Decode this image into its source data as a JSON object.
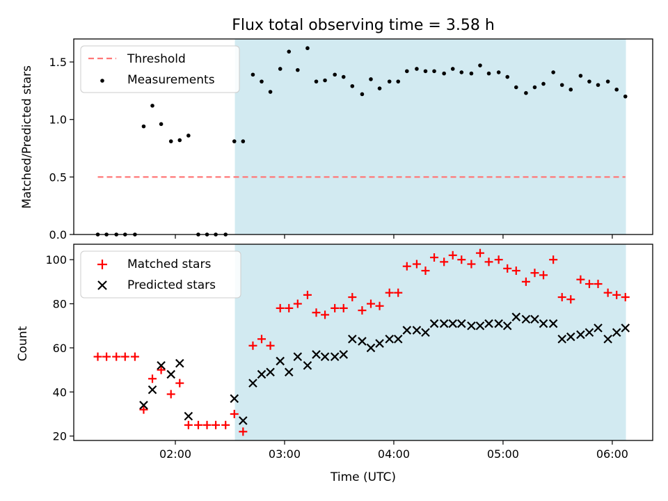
{
  "title": "Flux total observing time = 3.58 h",
  "xlabel": "Time (UTC)",
  "x_ticks": [
    {
      "v": 2.0,
      "label": "02:00"
    },
    {
      "v": 3.0,
      "label": "03:00"
    },
    {
      "v": 4.0,
      "label": "04:00"
    },
    {
      "v": 5.0,
      "label": "05:00"
    },
    {
      "v": 6.0,
      "label": "06:00"
    }
  ],
  "colors": {
    "shade": "#add8e6",
    "threshold": "#ff7777",
    "measurements": "#000000",
    "matched": "#ff0000",
    "predicted": "#000000"
  },
  "chart_data": [
    {
      "type": "scatter",
      "xlim": [
        1.07,
        6.37
      ],
      "ylim": [
        0,
        1.7
      ],
      "ylabel": "Matched/Predicted stars",
      "y_ticks": [
        {
          "v": 0.0,
          "label": "0.0"
        },
        {
          "v": 0.5,
          "label": "0.5"
        },
        {
          "v": 1.0,
          "label": "1.0"
        },
        {
          "v": 1.5,
          "label": "1.5"
        }
      ],
      "shaded_interval": [
        2.545,
        6.125
      ],
      "legend_position": "upper-left",
      "threshold": {
        "name": "Threshold",
        "value": 0.5,
        "x_range": [
          1.29,
          6.12
        ]
      },
      "series": [
        {
          "name": "Measurements",
          "x": [
            1.29,
            1.37,
            1.46,
            1.54,
            1.63,
            1.71,
            1.79,
            1.87,
            1.96,
            2.04,
            2.12,
            2.21,
            2.29,
            2.37,
            2.46,
            2.54,
            2.62,
            2.71,
            2.79,
            2.87,
            2.96,
            3.04,
            3.12,
            3.21,
            3.29,
            3.37,
            3.46,
            3.54,
            3.62,
            3.71,
            3.79,
            3.87,
            3.96,
            4.04,
            4.12,
            4.21,
            4.29,
            4.37,
            4.46,
            4.54,
            4.62,
            4.71,
            4.79,
            4.87,
            4.96,
            5.04,
            5.12,
            5.21,
            5.29,
            5.37,
            5.46,
            5.54,
            5.62,
            5.71,
            5.79,
            5.87,
            5.96,
            6.04,
            6.12
          ],
          "y": [
            0,
            0,
            0,
            0,
            0,
            0.94,
            1.12,
            0.96,
            0.81,
            0.82,
            0.86,
            0,
            0,
            0,
            0,
            0.81,
            0.81,
            1.39,
            1.33,
            1.24,
            1.44,
            1.59,
            1.43,
            1.62,
            1.33,
            1.34,
            1.39,
            1.37,
            1.29,
            1.22,
            1.35,
            1.27,
            1.33,
            1.33,
            1.42,
            1.44,
            1.42,
            1.42,
            1.4,
            1.44,
            1.41,
            1.4,
            1.47,
            1.4,
            1.41,
            1.37,
            1.28,
            1.23,
            1.28,
            1.31,
            1.41,
            1.3,
            1.26,
            1.38,
            1.33,
            1.3,
            1.33,
            1.26,
            1.2
          ]
        }
      ]
    },
    {
      "type": "scatter",
      "xlim": [
        1.07,
        6.37
      ],
      "ylim": [
        18,
        107
      ],
      "ylabel": "Count",
      "y_ticks": [
        {
          "v": 20,
          "label": "20"
        },
        {
          "v": 40,
          "label": "40"
        },
        {
          "v": 60,
          "label": "60"
        },
        {
          "v": 80,
          "label": "80"
        },
        {
          "v": 100,
          "label": "100"
        }
      ],
      "shaded_interval": [
        2.545,
        6.125
      ],
      "legend_position": "upper-left",
      "series": [
        {
          "name": "Matched stars",
          "x": [
            1.29,
            1.37,
            1.46,
            1.54,
            1.63,
            1.71,
            1.79,
            1.87,
            1.96,
            2.04,
            2.12,
            2.21,
            2.29,
            2.37,
            2.46,
            2.54,
            2.62,
            2.71,
            2.79,
            2.87,
            2.96,
            3.04,
            3.12,
            3.21,
            3.29,
            3.37,
            3.46,
            3.54,
            3.62,
            3.71,
            3.79,
            3.87,
            3.96,
            4.04,
            4.12,
            4.21,
            4.29,
            4.37,
            4.46,
            4.54,
            4.62,
            4.71,
            4.79,
            4.87,
            4.96,
            5.04,
            5.12,
            5.21,
            5.29,
            5.37,
            5.46,
            5.54,
            5.62,
            5.71,
            5.79,
            5.87,
            5.96,
            6.04,
            6.12
          ],
          "y": [
            56,
            56,
            56,
            56,
            56,
            32,
            46,
            50,
            39,
            44,
            25,
            25,
            25,
            25,
            25,
            30,
            22,
            61,
            64,
            61,
            78,
            78,
            80,
            84,
            76,
            75,
            78,
            78,
            83,
            77,
            80,
            79,
            85,
            85,
            97,
            98,
            95,
            101,
            99,
            102,
            100,
            98,
            103,
            99,
            100,
            96,
            95,
            90,
            94,
            93,
            100,
            83,
            82,
            91,
            89,
            89,
            85,
            84,
            83
          ]
        },
        {
          "name": "Predicted stars",
          "x": [
            1.71,
            1.79,
            1.87,
            1.96,
            2.04,
            2.12,
            2.54,
            2.62,
            2.71,
            2.79,
            2.87,
            2.96,
            3.04,
            3.12,
            3.21,
            3.29,
            3.37,
            3.46,
            3.54,
            3.62,
            3.71,
            3.79,
            3.87,
            3.96,
            4.04,
            4.12,
            4.21,
            4.29,
            4.37,
            4.46,
            4.54,
            4.62,
            4.71,
            4.79,
            4.87,
            4.96,
            5.04,
            5.12,
            5.21,
            5.29,
            5.37,
            5.46,
            5.54,
            5.62,
            5.71,
            5.79,
            5.87,
            5.96,
            6.04,
            6.12
          ],
          "y": [
            34,
            41,
            52,
            48,
            53,
            29,
            37,
            27,
            44,
            48,
            49,
            54,
            49,
            56,
            52,
            57,
            56,
            56,
            57,
            64,
            63,
            60,
            62,
            64,
            64,
            68,
            68,
            67,
            71,
            71,
            71,
            71,
            70,
            70,
            71,
            71,
            70,
            74,
            73,
            73,
            71,
            71,
            64,
            65,
            66,
            67,
            69,
            64,
            67,
            69
          ]
        }
      ]
    }
  ]
}
